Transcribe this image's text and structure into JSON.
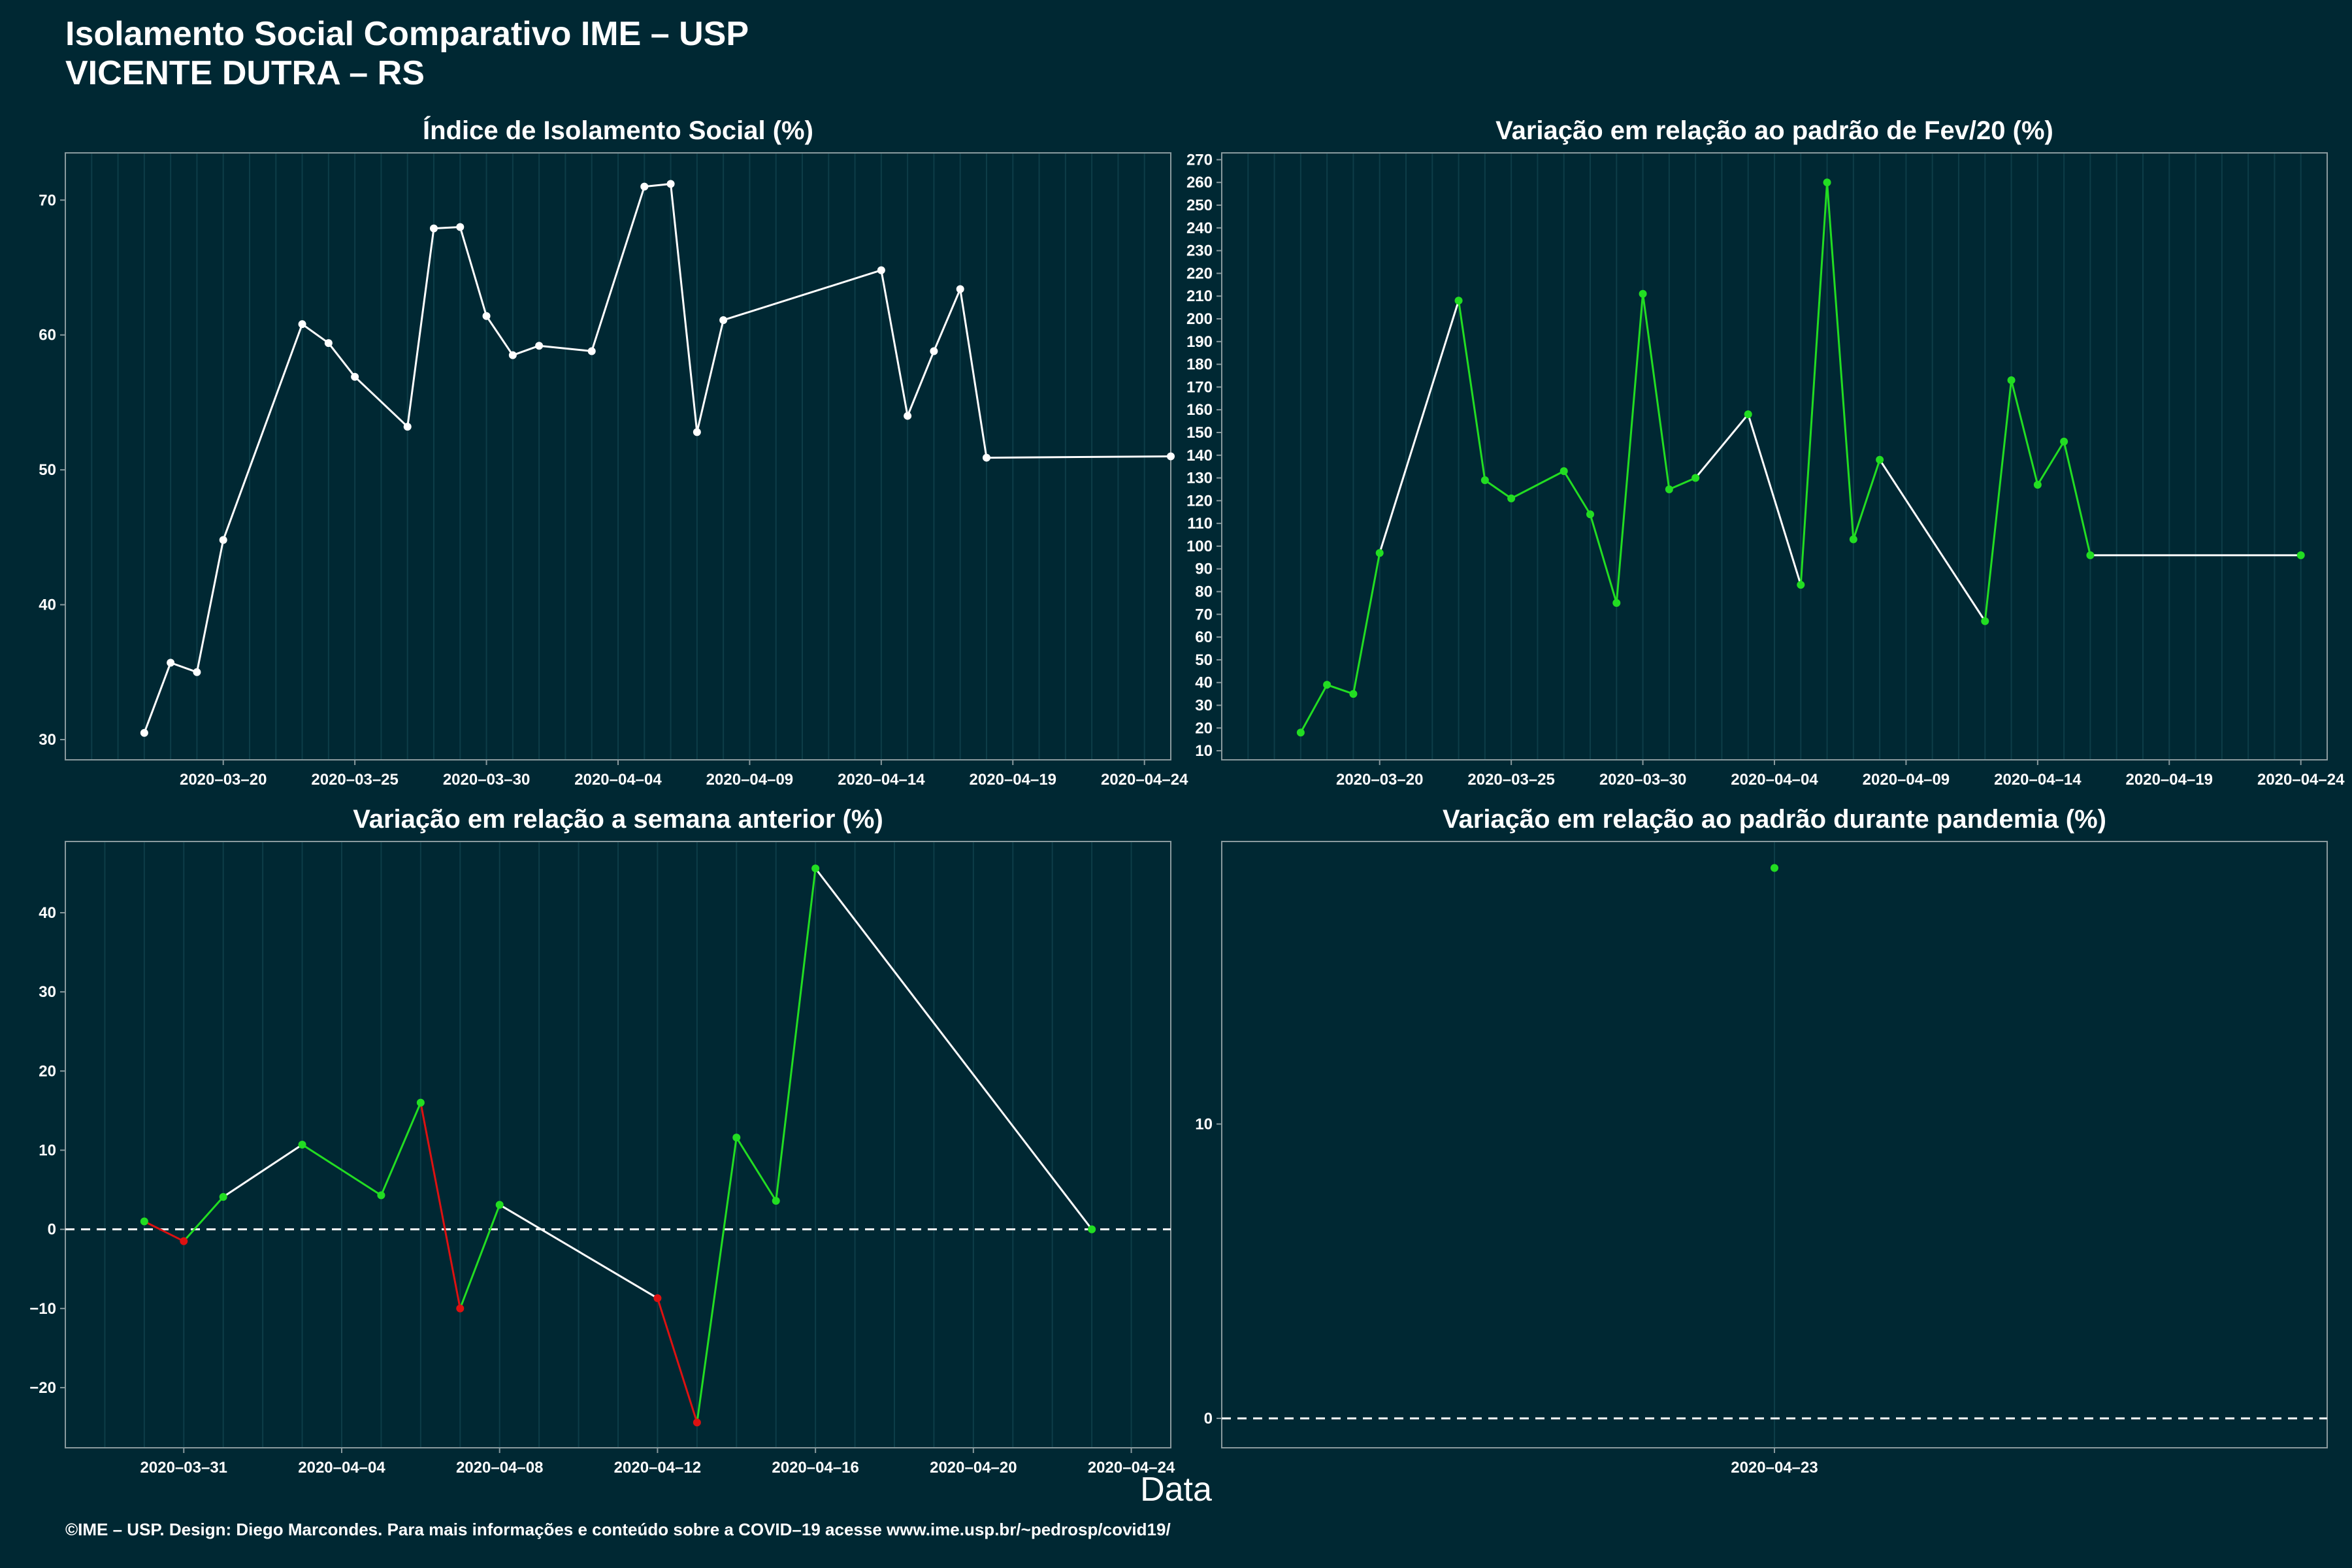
{
  "header": {
    "title": "Isolamento Social Comparativo IME – USP",
    "subtitle": "VICENTE DUTRA – RS"
  },
  "xlabel": "Data",
  "footer": "©IME – USP. Design: Diego Marcondes. Para mais informações e conteúdo sobre a COVID–19 acesse www.ime.usp.br/~pedrosp/covid19/",
  "colors": {
    "background": "#002833",
    "grid": "#0d3d48",
    "border": "#8a9a9e",
    "white": "#ffffff",
    "up": "#22dd22",
    "down": "#dd1111"
  },
  "chart_data": [
    {
      "type": "line",
      "title": "Índice de Isolamento Social (%)",
      "date_ticks": [
        "2020–03–20",
        "2020–03–25",
        "2020–03–30",
        "2020–04–04",
        "2020–04–09",
        "2020–04–14",
        "2020–04–19",
        "2020–04–24"
      ],
      "ylim": [
        28.5,
        73.5
      ],
      "yticks": [
        30,
        40,
        50,
        60,
        70
      ],
      "xlim": [
        "2020-03-14",
        "2020-04-25"
      ],
      "baseline": null,
      "x": [
        "2020-03-17",
        "2020-03-18",
        "2020-03-19",
        "2020-03-20",
        "2020-03-23",
        "2020-03-24",
        "2020-03-25",
        "2020-03-27",
        "2020-03-28",
        "2020-03-29",
        "2020-03-30",
        "2020-03-31",
        "2020-04-01",
        "2020-04-03",
        "2020-04-05",
        "2020-04-06",
        "2020-04-07",
        "2020-04-08",
        "2020-04-14",
        "2020-04-15",
        "2020-04-16",
        "2020-04-17",
        "2020-04-18",
        "2020-04-25"
      ],
      "values": [
        30.5,
        35.7,
        35.0,
        44.8,
        60.8,
        59.4,
        56.9,
        53.2,
        67.9,
        68.0,
        61.4,
        58.5,
        59.2,
        58.8,
        71.0,
        71.2,
        52.8,
        61.1,
        64.8,
        54.0,
        58.8,
        63.4,
        50.9,
        51.0
      ],
      "colors": [
        "w",
        "w",
        "w",
        "w",
        "w",
        "w",
        "w",
        "w",
        "w",
        "w",
        "w",
        "w",
        "w",
        "w",
        "w",
        "w",
        "w",
        "w",
        "w",
        "w",
        "w",
        "w",
        "w"
      ]
    },
    {
      "type": "line",
      "title": "Variação em relação ao padrão de Fev/20 (%)",
      "date_ticks": [
        "2020–03–20",
        "2020–03–25",
        "2020–03–30",
        "2020–04–04",
        "2020–04–09",
        "2020–04–14",
        "2020–04–19",
        "2020–04–24"
      ],
      "ylim": [
        6,
        273
      ],
      "yticks": [
        10,
        20,
        30,
        40,
        50,
        60,
        70,
        80,
        90,
        100,
        110,
        120,
        130,
        140,
        150,
        160,
        170,
        180,
        190,
        200,
        210,
        220,
        230,
        240,
        250,
        260,
        270
      ],
      "xlim": [
        "2020-03-14",
        "2020-04-25"
      ],
      "baseline": null,
      "x": [
        "2020-03-17",
        "2020-03-18",
        "2020-03-19",
        "2020-03-20",
        "2020-03-23",
        "2020-03-24",
        "2020-03-25",
        "2020-03-27",
        "2020-03-28",
        "2020-03-29",
        "2020-03-30",
        "2020-03-31",
        "2020-04-01",
        "2020-04-03",
        "2020-04-05",
        "2020-04-06",
        "2020-04-07",
        "2020-04-08",
        "2020-04-12",
        "2020-04-13",
        "2020-04-14",
        "2020-04-15",
        "2020-04-16",
        "2020-04-24"
      ],
      "values": [
        18,
        39,
        35,
        97,
        208,
        129,
        121,
        133,
        114,
        75,
        211,
        125,
        130,
        158,
        83,
        260,
        103,
        138,
        67,
        173,
        127,
        146,
        96,
        96
      ],
      "colors": [
        "g",
        "g",
        "g",
        "w",
        "g",
        "g",
        "g",
        "g",
        "g",
        "g",
        "g",
        "g",
        "w",
        "w",
        "g",
        "g",
        "g",
        "w",
        "g",
        "g",
        "g",
        "g",
        "w"
      ]
    },
    {
      "type": "line",
      "title": "Variação em relação a semana anterior (%)",
      "date_ticks": [
        "2020–03–31",
        "2020–04–04",
        "2020–04–08",
        "2020–04–12",
        "2020–04–16",
        "2020–04–20",
        "2020–04–24"
      ],
      "ylim": [
        -27.6,
        49.0
      ],
      "yticks": [
        -20,
        -10,
        0,
        10,
        20,
        30,
        40
      ],
      "xlim": [
        "2020-03-28",
        "2020-04-25"
      ],
      "baseline": 0,
      "x": [
        "2020-03-30",
        "2020-03-31",
        "2020-04-01",
        "2020-04-03",
        "2020-04-05",
        "2020-04-06",
        "2020-04-07",
        "2020-04-08",
        "2020-04-12",
        "2020-04-13",
        "2020-04-14",
        "2020-04-15",
        "2020-04-16",
        "2020-04-23"
      ],
      "values": [
        1.0,
        -1.5,
        4.1,
        10.7,
        4.3,
        16.0,
        -10.0,
        3.1,
        -8.7,
        -24.4,
        11.6,
        3.6,
        45.6,
        0.0
      ],
      "colors": [
        "r",
        "g",
        "w",
        "g",
        "g",
        "r",
        "g",
        "w",
        "r",
        "g",
        "g",
        "g",
        "w"
      ]
    },
    {
      "type": "scatter",
      "title": "Variação em relação ao padrão durante pandemia (%)",
      "date_ticks": [
        "2020–04–23"
      ],
      "ylim": [
        -1.0,
        19.6
      ],
      "yticks": [
        0,
        10
      ],
      "xlim": [
        "2020-04-22",
        "2020-04-24"
      ],
      "baseline": 0,
      "x": [
        "2020-04-23"
      ],
      "values": [
        18.7
      ],
      "colors": []
    }
  ]
}
